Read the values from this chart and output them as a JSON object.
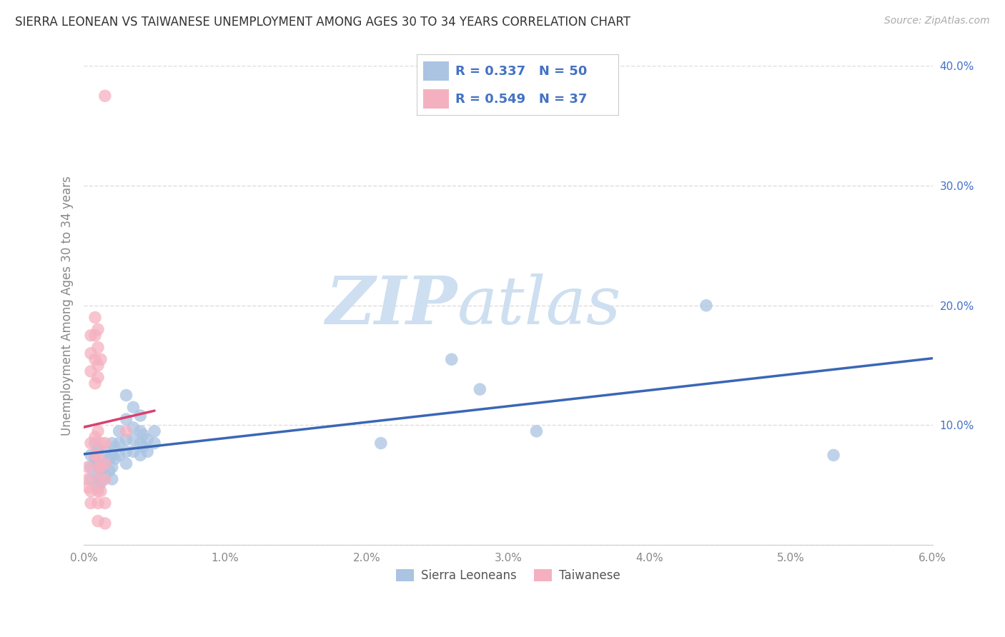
{
  "title": "SIERRA LEONEAN VS TAIWANESE UNEMPLOYMENT AMONG AGES 30 TO 34 YEARS CORRELATION CHART",
  "source": "Source: ZipAtlas.com",
  "ylabel": "Unemployment Among Ages 30 to 34 years",
  "xlim": [
    0.0,
    0.06
  ],
  "ylim": [
    0.0,
    0.4
  ],
  "xticks": [
    0.0,
    0.01,
    0.02,
    0.03,
    0.04,
    0.05,
    0.06
  ],
  "xticklabels": [
    "0.0%",
    "1.0%",
    "2.0%",
    "3.0%",
    "4.0%",
    "5.0%",
    "6.0%"
  ],
  "yticks": [
    0.1,
    0.2,
    0.3,
    0.4
  ],
  "yticklabels": [
    "10.0%",
    "20.0%",
    "30.0%",
    "40.0%"
  ],
  "legend_labels": [
    "Sierra Leoneans",
    "Taiwanese"
  ],
  "blue_color": "#aac4e2",
  "pink_color": "#f5b0c0",
  "blue_line_color": "#3a67b5",
  "pink_line_color": "#d94070",
  "R_blue": 0.337,
  "N_blue": 50,
  "R_pink": 0.549,
  "N_pink": 37,
  "blue_scatter": [
    [
      0.0005,
      0.075
    ],
    [
      0.0005,
      0.065
    ],
    [
      0.0005,
      0.055
    ],
    [
      0.0008,
      0.085
    ],
    [
      0.0008,
      0.072
    ],
    [
      0.001,
      0.08
    ],
    [
      0.001,
      0.068
    ],
    [
      0.001,
      0.058
    ],
    [
      0.001,
      0.048
    ],
    [
      0.0012,
      0.062
    ],
    [
      0.0012,
      0.052
    ],
    [
      0.0015,
      0.078
    ],
    [
      0.0015,
      0.068
    ],
    [
      0.0015,
      0.058
    ],
    [
      0.0018,
      0.072
    ],
    [
      0.0018,
      0.062
    ],
    [
      0.002,
      0.085
    ],
    [
      0.002,
      0.075
    ],
    [
      0.002,
      0.065
    ],
    [
      0.002,
      0.055
    ],
    [
      0.0022,
      0.082
    ],
    [
      0.0022,
      0.072
    ],
    [
      0.0025,
      0.095
    ],
    [
      0.0025,
      0.085
    ],
    [
      0.0025,
      0.075
    ],
    [
      0.003,
      0.125
    ],
    [
      0.003,
      0.105
    ],
    [
      0.003,
      0.088
    ],
    [
      0.003,
      0.078
    ],
    [
      0.003,
      0.068
    ],
    [
      0.0035,
      0.115
    ],
    [
      0.0035,
      0.098
    ],
    [
      0.0035,
      0.088
    ],
    [
      0.0035,
      0.078
    ],
    [
      0.004,
      0.108
    ],
    [
      0.004,
      0.095
    ],
    [
      0.004,
      0.085
    ],
    [
      0.004,
      0.075
    ],
    [
      0.0042,
      0.092
    ],
    [
      0.0042,
      0.082
    ],
    [
      0.0045,
      0.088
    ],
    [
      0.0045,
      0.078
    ],
    [
      0.005,
      0.095
    ],
    [
      0.005,
      0.085
    ],
    [
      0.021,
      0.085
    ],
    [
      0.026,
      0.155
    ],
    [
      0.028,
      0.13
    ],
    [
      0.032,
      0.095
    ],
    [
      0.044,
      0.2
    ],
    [
      0.053,
      0.075
    ]
  ],
  "pink_scatter": [
    [
      0.0003,
      0.065
    ],
    [
      0.0003,
      0.055
    ],
    [
      0.0003,
      0.048
    ],
    [
      0.0005,
      0.175
    ],
    [
      0.0005,
      0.16
    ],
    [
      0.0005,
      0.145
    ],
    [
      0.0005,
      0.085
    ],
    [
      0.0005,
      0.045
    ],
    [
      0.0005,
      0.035
    ],
    [
      0.0008,
      0.19
    ],
    [
      0.0008,
      0.175
    ],
    [
      0.0008,
      0.155
    ],
    [
      0.0008,
      0.135
    ],
    [
      0.0008,
      0.09
    ],
    [
      0.0008,
      0.075
    ],
    [
      0.001,
      0.18
    ],
    [
      0.001,
      0.165
    ],
    [
      0.001,
      0.15
    ],
    [
      0.001,
      0.14
    ],
    [
      0.001,
      0.095
    ],
    [
      0.001,
      0.075
    ],
    [
      0.001,
      0.065
    ],
    [
      0.001,
      0.055
    ],
    [
      0.001,
      0.045
    ],
    [
      0.001,
      0.035
    ],
    [
      0.001,
      0.02
    ],
    [
      0.0012,
      0.155
    ],
    [
      0.0012,
      0.085
    ],
    [
      0.0012,
      0.065
    ],
    [
      0.0012,
      0.045
    ],
    [
      0.0015,
      0.375
    ],
    [
      0.0015,
      0.085
    ],
    [
      0.0015,
      0.068
    ],
    [
      0.0015,
      0.055
    ],
    [
      0.0015,
      0.035
    ],
    [
      0.0015,
      0.018
    ],
    [
      0.003,
      0.095
    ]
  ],
  "watermark_zip": "ZIP",
  "watermark_atlas": "atlas",
  "watermark_color": "#cddff0",
  "background_color": "#ffffff",
  "grid_color": "#dddddd",
  "tick_color": "#888888",
  "label_color": "#4472c4",
  "title_color": "#333333"
}
